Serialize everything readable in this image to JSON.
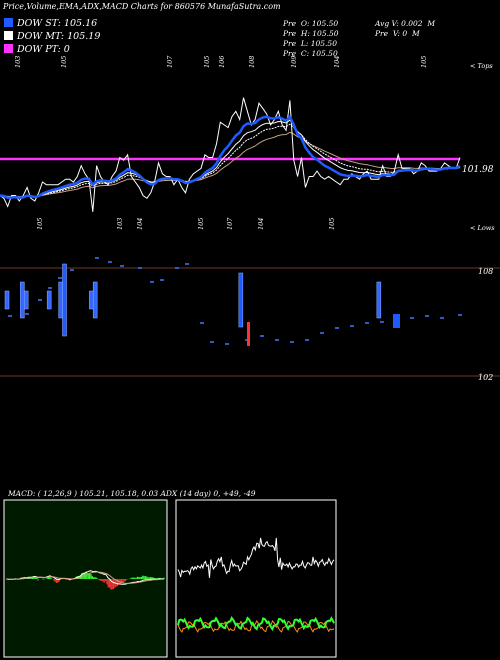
{
  "header": {
    "title": "Price,Volume,EMA,ADX,MACD Charts for 860576  MunafaSutra.com"
  },
  "legend": [
    {
      "label": "DOW ST: 105.16",
      "color": "#1e5cff"
    },
    {
      "label": "DOW MT: 105.19",
      "color": "#ffffff"
    },
    {
      "label": "DOW PT: 0",
      "color": "#ff33ff"
    }
  ],
  "ohlc": {
    "open": "Pre  O: 105.50",
    "high": "Pre  H: 105.50",
    "low": "Pre  L: 105.50",
    "close": "Pre  C: 105.50",
    "avg_volume": "Avg V: 0.002  M",
    "volume": "Pre  V: 0  M"
  },
  "top_labels": {
    "values": [
      "103",
      "105",
      "107",
      "105",
      "106",
      "108",
      "109",
      "104",
      "105"
    ],
    "tops": "< Tops"
  },
  "bottom_labels": {
    "values": [
      "105",
      "103",
      "104",
      "105",
      "107",
      "104",
      "105"
    ],
    "lows": "< Lows"
  },
  "price_label": "101.98",
  "volume_axis": {
    "upper": "108",
    "lower": "102"
  },
  "macd": {
    "text": "MACD:                  ( 12,26,9 ) 105.21,  105.18,  0.03 ADX                    (14  day) 0,  +49,  -49"
  },
  "colors": {
    "price": "#ffffff",
    "ema_short": "#1e5cff",
    "ema_mid": "#ffffff",
    "ema_long": "#c8a07c",
    "pt_line": "#ff33ff",
    "axis": "#6b3a1f",
    "macd_green": "#33ff33",
    "macd_red": "#ff3333",
    "adx_orange": "#ff8c1a"
  },
  "chart_data": [
    {
      "type": "line",
      "title": "Price",
      "y": [
        101.9,
        101.8,
        101.5,
        101.9,
        101.9,
        101.7,
        101.9,
        102.2,
        101.8,
        101.7,
        102.0,
        102.4,
        102.3,
        102.3,
        102.3,
        102.3,
        102.4,
        102.5,
        102.5,
        102.4,
        102.6,
        103.0,
        102.7,
        102.5,
        101.3,
        103.0,
        102.6,
        102.4,
        102.3,
        102.6,
        102.8,
        103.3,
        103.2,
        103.4,
        102.6,
        102.4,
        102.2,
        101.9,
        101.8,
        102.0,
        102.4,
        103.1,
        102.7,
        102.6,
        102.6,
        102.3,
        102.5,
        102.2,
        102.0,
        102.5,
        102.7,
        102.8,
        102.9,
        103.4,
        103.3,
        103.3,
        103.8,
        104.6,
        104.5,
        104.4,
        104.8,
        105.0,
        104.7,
        105.5,
        105.0,
        104.5,
        104.7,
        105.3,
        105.1,
        104.9,
        104.5,
        104.7,
        105.0,
        104.5,
        104.3,
        105.4,
        103.2,
        102.6,
        103.3,
        102.2,
        102.6,
        102.6,
        102.8,
        102.6,
        102.5,
        102.6,
        102.5,
        102.4,
        102.3,
        102.5,
        102.5,
        102.7,
        102.6,
        102.5,
        102.7,
        102.8,
        102.5,
        102.5,
        102.5,
        103.0,
        102.6,
        102.6,
        102.8,
        103.4,
        102.9,
        102.9,
        102.9,
        102.7,
        102.8,
        103.1,
        103.0,
        102.8,
        102.8,
        102.8,
        102.9,
        103.1,
        103.0,
        102.9,
        102.9,
        103.3
      ]
    },
    {
      "type": "bar",
      "title": "Volume",
      "y": [
        1,
        0,
        0,
        0,
        2,
        1,
        0,
        0,
        0,
        0,
        0,
        1,
        0,
        0,
        2,
        4,
        0,
        0,
        0,
        0,
        0,
        0,
        1,
        2,
        0,
        0,
        0,
        0,
        0,
        0,
        0,
        0,
        0,
        0,
        0,
        0,
        0,
        0,
        0,
        0,
        0,
        0,
        0,
        0,
        0,
        0,
        0,
        0,
        0,
        0,
        0,
        0,
        0,
        0,
        0,
        0,
        0,
        0,
        0,
        0,
        0,
        3,
        0,
        0,
        0,
        0,
        0,
        0,
        0,
        0,
        0,
        0,
        0,
        0,
        0,
        0,
        0,
        0,
        0,
        0,
        0,
        0,
        0,
        0,
        0,
        0,
        0,
        0,
        0,
        0,
        0,
        0,
        0,
        0,
        0,
        0,
        0,
        2,
        0,
        0,
        0,
        0,
        0,
        0,
        0,
        0,
        0,
        0,
        0,
        0,
        0,
        0,
        0,
        0,
        0,
        0,
        0,
        0,
        0,
        0
      ]
    }
  ]
}
